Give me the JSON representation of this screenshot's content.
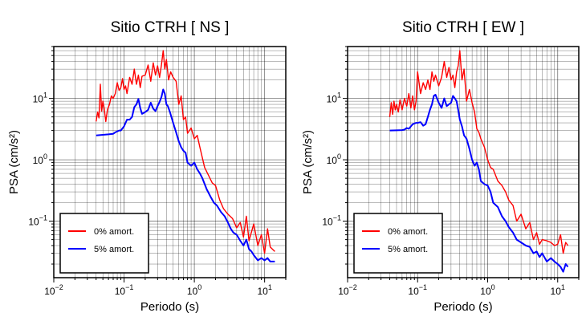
{
  "chart_data": [
    {
      "type": "line",
      "title": "Sitio CTRH [ NS ]",
      "xlabel": "Periodo (s)",
      "ylabel": "PSA (cm/s²)",
      "xscale": "log",
      "yscale": "log",
      "xlim": [
        0.01,
        20
      ],
      "ylim": [
        0.012,
        70
      ],
      "x_ticks": [
        {
          "v": 0.01,
          "b": "10",
          "e": "−2"
        },
        {
          "v": 0.1,
          "b": "10",
          "e": "−1"
        },
        {
          "v": 1,
          "b": "10",
          "e": "0"
        },
        {
          "v": 10,
          "b": "10",
          "e": "1"
        }
      ],
      "y_ticks": [
        {
          "v": 0.1,
          "b": "10",
          "e": "−1"
        },
        {
          "v": 1,
          "b": "10",
          "e": "0"
        },
        {
          "v": 10,
          "b": "10",
          "e": "1"
        }
      ],
      "grid": true,
      "legend_position": "bottom-left",
      "series": [
        {
          "name": "0% amort.",
          "color": "#ff0000",
          "x": [
            0.04,
            0.042,
            0.044,
            0.046,
            0.048,
            0.05,
            0.052,
            0.055,
            0.058,
            0.062,
            0.066,
            0.07,
            0.075,
            0.08,
            0.085,
            0.09,
            0.095,
            0.1,
            0.105,
            0.11,
            0.12,
            0.13,
            0.14,
            0.15,
            0.16,
            0.17,
            0.18,
            0.2,
            0.22,
            0.24,
            0.26,
            0.28,
            0.3,
            0.32,
            0.34,
            0.36,
            0.38,
            0.4,
            0.43,
            0.46,
            0.5,
            0.55,
            0.6,
            0.65,
            0.7,
            0.75,
            0.8,
            0.9,
            1.0,
            1.1,
            1.2,
            1.4,
            1.6,
            1.8,
            2.0,
            2.3,
            2.6,
            3.0,
            3.5,
            4.0,
            4.5,
            5.0,
            5.5,
            6.0,
            7.0,
            8.0,
            9.0,
            10.0,
            11.0,
            12.0,
            14.0
          ],
          "y": [
            4.2,
            6.0,
            4.8,
            17.0,
            6.2,
            9.0,
            7.0,
            4.2,
            6.5,
            8.0,
            11.0,
            10.0,
            12.0,
            18.0,
            13.5,
            15.0,
            21.0,
            14.0,
            16.0,
            12.0,
            22.0,
            17.0,
            30.0,
            17.0,
            24.0,
            15.0,
            23.0,
            24.0,
            35.0,
            19.0,
            38.0,
            24.0,
            34.0,
            22.0,
            35.0,
            60.0,
            30.0,
            43.0,
            20.0,
            27.0,
            22.0,
            19.0,
            8.0,
            11.0,
            4.5,
            5.0,
            2.7,
            3.3,
            2.2,
            2.5,
            1.6,
            0.75,
            0.55,
            0.42,
            0.38,
            0.22,
            0.16,
            0.13,
            0.11,
            0.078,
            0.095,
            0.055,
            0.12,
            0.048,
            0.09,
            0.04,
            0.06,
            0.03,
            0.075,
            0.038,
            0.032
          ]
        },
        {
          "name": "5% amort.",
          "color": "#0000ff",
          "x": [
            0.04,
            0.05,
            0.06,
            0.07,
            0.075,
            0.08,
            0.085,
            0.09,
            0.1,
            0.11,
            0.12,
            0.13,
            0.14,
            0.15,
            0.16,
            0.17,
            0.18,
            0.19,
            0.2,
            0.22,
            0.24,
            0.26,
            0.28,
            0.3,
            0.32,
            0.34,
            0.36,
            0.38,
            0.4,
            0.42,
            0.45,
            0.5,
            0.55,
            0.6,
            0.65,
            0.7,
            0.75,
            0.8,
            0.9,
            1.0,
            1.1,
            1.2,
            1.3,
            1.5,
            1.7,
            1.9,
            2.1,
            2.4,
            2.7,
            3.0,
            3.3,
            3.6,
            4.0,
            4.5,
            5.0,
            5.5,
            6.0,
            6.5,
            7.0,
            8.0,
            9.0,
            10.0,
            11.0,
            12.0,
            13.0,
            14.0
          ],
          "y": [
            2.5,
            2.55,
            2.6,
            2.65,
            2.8,
            2.9,
            3.0,
            3.0,
            3.5,
            4.5,
            4.5,
            5.0,
            7.2,
            8.0,
            9.8,
            7.0,
            5.6,
            5.8,
            6.0,
            6.5,
            8.5,
            6.8,
            6.2,
            7.5,
            8.8,
            10.5,
            14.0,
            12.0,
            8.0,
            7.5,
            6.0,
            4.0,
            2.8,
            2.0,
            1.6,
            1.4,
            1.3,
            0.9,
            0.8,
            0.9,
            0.7,
            0.6,
            0.5,
            0.33,
            0.25,
            0.2,
            0.18,
            0.14,
            0.12,
            0.095,
            0.075,
            0.065,
            0.06,
            0.048,
            0.04,
            0.05,
            0.035,
            0.032,
            0.028,
            0.023,
            0.025,
            0.023,
            0.025,
            0.022,
            0.022,
            0.022
          ]
        }
      ]
    },
    {
      "type": "line",
      "title": "Sitio CTRH [ EW ]",
      "xlabel": "Periodo (s)",
      "ylabel": "PSA (cm/s²)",
      "xscale": "log",
      "yscale": "log",
      "xlim": [
        0.01,
        20
      ],
      "ylim": [
        0.012,
        70
      ],
      "x_ticks": [
        {
          "v": 0.01,
          "b": "10",
          "e": "−2"
        },
        {
          "v": 0.1,
          "b": "10",
          "e": "−1"
        },
        {
          "v": 1,
          "b": "10",
          "e": "0"
        },
        {
          "v": 10,
          "b": "10",
          "e": "1"
        }
      ],
      "y_ticks": [
        {
          "v": 0.1,
          "b": "10",
          "e": "−1"
        },
        {
          "v": 1,
          "b": "10",
          "e": "0"
        },
        {
          "v": 10,
          "b": "10",
          "e": "1"
        }
      ],
      "grid": true,
      "legend_position": "bottom-left",
      "series": [
        {
          "name": "0% amort.",
          "color": "#ff0000",
          "x": [
            0.04,
            0.042,
            0.044,
            0.046,
            0.048,
            0.05,
            0.053,
            0.056,
            0.06,
            0.065,
            0.07,
            0.075,
            0.08,
            0.085,
            0.09,
            0.095,
            0.1,
            0.11,
            0.12,
            0.13,
            0.14,
            0.15,
            0.16,
            0.17,
            0.18,
            0.2,
            0.22,
            0.24,
            0.26,
            0.28,
            0.3,
            0.32,
            0.34,
            0.36,
            0.38,
            0.4,
            0.43,
            0.46,
            0.5,
            0.55,
            0.6,
            0.65,
            0.7,
            0.75,
            0.8,
            0.9,
            1.0,
            1.1,
            1.2,
            1.4,
            1.6,
            1.8,
            2.0,
            2.3,
            2.6,
            3.0,
            3.5,
            4.0,
            4.5,
            5.0,
            5.5,
            6.0,
            7.0,
            8.0,
            9.0,
            10.0,
            11.0,
            12.0,
            13.0,
            14.0
          ],
          "y": [
            5.0,
            8.5,
            5.5,
            9.0,
            6.5,
            8.0,
            6.0,
            9.5,
            6.5,
            10.0,
            7.5,
            12.0,
            7.0,
            11.0,
            6.5,
            9.0,
            27.0,
            12.0,
            18.0,
            14.0,
            20.0,
            14.0,
            27.0,
            19.0,
            24.0,
            16.0,
            22.0,
            40.0,
            22.0,
            32.0,
            20.0,
            24.0,
            15.0,
            27.0,
            34.0,
            60.0,
            20.0,
            30.0,
            9.0,
            14.0,
            8.5,
            6.0,
            3.2,
            2.8,
            2.2,
            1.6,
            1.0,
            0.75,
            0.7,
            0.45,
            0.38,
            0.3,
            0.22,
            0.18,
            0.1,
            0.13,
            0.075,
            0.095,
            0.05,
            0.065,
            0.042,
            0.05,
            0.048,
            0.045,
            0.04,
            0.042,
            0.06,
            0.03,
            0.045,
            0.04
          ]
        },
        {
          "name": "5% amort.",
          "color": "#0000ff",
          "x": [
            0.04,
            0.05,
            0.06,
            0.065,
            0.07,
            0.075,
            0.08,
            0.085,
            0.09,
            0.095,
            0.1,
            0.11,
            0.12,
            0.13,
            0.14,
            0.15,
            0.16,
            0.17,
            0.18,
            0.2,
            0.22,
            0.24,
            0.26,
            0.28,
            0.3,
            0.32,
            0.34,
            0.36,
            0.38,
            0.4,
            0.43,
            0.46,
            0.5,
            0.55,
            0.6,
            0.65,
            0.7,
            0.75,
            0.8,
            0.9,
            1.0,
            1.1,
            1.2,
            1.4,
            1.6,
            1.8,
            2.0,
            2.3,
            2.6,
            3.0,
            3.5,
            4.0,
            4.5,
            5.0,
            5.5,
            6.0,
            7.0,
            8.0,
            9.0,
            10.0,
            11.0,
            12.0,
            13.0,
            14.0
          ],
          "y": [
            3.0,
            3.02,
            3.05,
            3.1,
            3.3,
            3.2,
            3.5,
            3.8,
            3.9,
            4.0,
            4.0,
            4.1,
            3.6,
            3.8,
            5.0,
            6.5,
            8.0,
            11.0,
            11.5,
            8.5,
            7.0,
            10.0,
            7.5,
            8.0,
            8.5,
            11.0,
            10.0,
            9.0,
            6.5,
            4.5,
            3.5,
            2.5,
            2.2,
            1.5,
            1.0,
            0.8,
            0.9,
            0.7,
            0.45,
            0.4,
            0.38,
            0.3,
            0.2,
            0.17,
            0.12,
            0.1,
            0.08,
            0.065,
            0.05,
            0.045,
            0.04,
            0.038,
            0.03,
            0.032,
            0.026,
            0.03,
            0.022,
            0.025,
            0.022,
            0.02,
            0.018,
            0.015,
            0.02,
            0.018
          ]
        }
      ]
    }
  ]
}
